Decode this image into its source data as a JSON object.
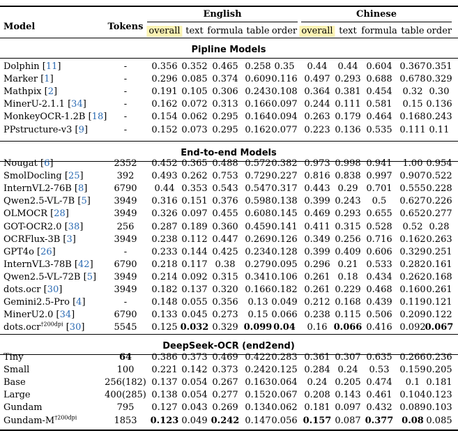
{
  "header": {
    "model": "Model",
    "tokens": "Tokens",
    "english": "English",
    "chinese": "Chinese",
    "cols": [
      "overall",
      "text",
      "formula",
      "table",
      "order"
    ]
  },
  "sections": [
    {
      "title": "Pipline Models",
      "rows": [
        {
          "name": "Dolphin",
          "cite": "11",
          "sup": "",
          "tokens": "-",
          "en": [
            "0.356",
            "0.352",
            "0.465",
            "0.258",
            "0.35"
          ],
          "zh": [
            "0.44",
            "0.44",
            "0.604",
            "0.367",
            "0.351"
          ]
        },
        {
          "name": "Marker",
          "cite": "1",
          "sup": "",
          "tokens": "-",
          "en": [
            "0.296",
            "0.085",
            "0.374",
            "0.609",
            "0.116"
          ],
          "zh": [
            "0.497",
            "0.293",
            "0.688",
            "0.678",
            "0.329"
          ]
        },
        {
          "name": "Mathpix",
          "cite": "2",
          "sup": "",
          "tokens": "-",
          "en": [
            "0.191",
            "0.105",
            "0.306",
            "0.243",
            "0.108"
          ],
          "zh": [
            "0.364",
            "0.381",
            "0.454",
            "0.32",
            "0.30"
          ]
        },
        {
          "name": "MinerU-2.1.1",
          "cite": "34",
          "sup": "",
          "tokens": "-",
          "en": [
            "0.162",
            "0.072",
            "0.313",
            "0.166",
            "0.097"
          ],
          "zh": [
            "0.244",
            "0.111",
            "0.581",
            "0.15",
            "0.136"
          ]
        },
        {
          "name": "MonkeyOCR-1.2B",
          "cite": "18",
          "sup": "",
          "tokens": "-",
          "en": [
            "0.154",
            "0.062",
            "0.295",
            "0.164",
            "0.094"
          ],
          "zh": [
            "0.263",
            "0.179",
            "0.464",
            "0.168",
            "0.243"
          ]
        },
        {
          "name": "PPstructure-v3",
          "cite": "9",
          "sup": "",
          "tokens": "-",
          "en": [
            "0.152",
            "0.073",
            "0.295",
            "0.162",
            "0.077"
          ],
          "zh": [
            "0.223",
            "0.136",
            "0.535",
            "0.111",
            "0.11"
          ]
        }
      ]
    },
    {
      "title": "End-to-end Models",
      "rows": [
        {
          "name": "Nougat",
          "cite": "6",
          "sup": "",
          "tokens": "2352",
          "en": [
            "0.452",
            "0.365",
            "0.488",
            "0.572",
            "0.382"
          ],
          "zh": [
            "0.973",
            "0.998",
            "0.941",
            "1.00",
            "0.954"
          ]
        },
        {
          "name": "SmolDocling",
          "cite": "25",
          "sup": "",
          "tokens": "392",
          "en": [
            "0.493",
            "0.262",
            "0.753",
            "0.729",
            "0.227"
          ],
          "zh": [
            "0.816",
            "0.838",
            "0.997",
            "0.907",
            "0.522"
          ]
        },
        {
          "name": "InternVL2-76B",
          "cite": "8",
          "sup": "",
          "tokens": "6790",
          "en": [
            "0.44",
            "0.353",
            "0.543",
            "0.547",
            "0.317"
          ],
          "zh": [
            "0.443",
            "0.29",
            "0.701",
            "0.555",
            "0.228"
          ]
        },
        {
          "name": "Qwen2.5-VL-7B",
          "cite": "5",
          "sup": "",
          "tokens": "3949",
          "en": [
            "0.316",
            "0.151",
            "0.376",
            "0.598",
            "0.138"
          ],
          "zh": [
            "0.399",
            "0.243",
            "0.5",
            "0.627",
            "0.226"
          ]
        },
        {
          "name": "OLMOCR",
          "cite": "28",
          "sup": "",
          "tokens": "3949",
          "en": [
            "0.326",
            "0.097",
            "0.455",
            "0.608",
            "0.145"
          ],
          "zh": [
            "0.469",
            "0.293",
            "0.655",
            "0.652",
            "0.277"
          ]
        },
        {
          "name": "GOT-OCR2.0",
          "cite": "38",
          "sup": "",
          "tokens": "256",
          "en": [
            "0.287",
            "0.189",
            "0.360",
            "0.459",
            "0.141"
          ],
          "zh": [
            "0.411",
            "0.315",
            "0.528",
            "0.52",
            "0.28"
          ]
        },
        {
          "name": "OCRFlux-3B",
          "cite": "3",
          "sup": "",
          "tokens": "3949",
          "en": [
            "0.238",
            "0.112",
            "0.447",
            "0.269",
            "0.126"
          ],
          "zh": [
            "0.349",
            "0.256",
            "0.716",
            "0.162",
            "0.263"
          ]
        },
        {
          "name": "GPT4o",
          "cite": "26",
          "sup": "",
          "tokens": "-",
          "en": [
            "0.233",
            "0.144",
            "0.425",
            "0.234",
            "0.128"
          ],
          "zh": [
            "0.399",
            "0.409",
            "0.606",
            "0.329",
            "0.251"
          ]
        },
        {
          "name": "InternVL3-78B",
          "cite": "42",
          "sup": "",
          "tokens": "6790",
          "en": [
            "0.218",
            "0.117",
            "0.38",
            "0.279",
            "0.095"
          ],
          "zh": [
            "0.296",
            "0.21",
            "0.533",
            "0.282",
            "0.161"
          ]
        },
        {
          "name": "Qwen2.5-VL-72B",
          "cite": "5",
          "sup": "",
          "tokens": "3949",
          "en": [
            "0.214",
            "0.092",
            "0.315",
            "0.341",
            "0.106"
          ],
          "zh": [
            "0.261",
            "0.18",
            "0.434",
            "0.262",
            "0.168"
          ]
        },
        {
          "name": "dots.ocr",
          "cite": "30",
          "sup": "",
          "tokens": "3949",
          "en": [
            "0.182",
            "0.137",
            "0.320",
            "0.166",
            "0.182"
          ],
          "zh": [
            "0.261",
            "0.229",
            "0.468",
            "0.160",
            "0.261"
          ]
        },
        {
          "name": "Gemini2.5-Pro",
          "cite": "4",
          "sup": "",
          "tokens": "-",
          "en": [
            "0.148",
            "0.055",
            "0.356",
            "0.13",
            "0.049"
          ],
          "zh": [
            "0.212",
            "0.168",
            "0.439",
            "0.119",
            "0.121"
          ]
        },
        {
          "name": "MinerU2.0",
          "cite": "34",
          "sup": "",
          "tokens": "6790",
          "en": [
            "0.133",
            "0.045",
            "0.273",
            "0.15",
            "0.066"
          ],
          "zh": [
            "0.238",
            "0.115",
            "0.506",
            "0.209",
            "0.122"
          ]
        },
        {
          "name": "dots.ocr",
          "cite": "30",
          "sup": "†200dpi",
          "tokens": "5545",
          "en": [
            "0.125",
            "0.032",
            "0.329",
            "0.099",
            "0.04"
          ],
          "zh": [
            "0.16",
            "0.066",
            "0.416",
            "0.092",
            "0.067"
          ],
          "bold_en": [
            1,
            3,
            4
          ],
          "bold_zh": [
            1,
            4
          ]
        }
      ]
    },
    {
      "title": "DeepSeek-OCR (end2end)",
      "rows": [
        {
          "name": "Tiny",
          "cite": "",
          "sup": "",
          "tokens": "64",
          "bold_tokens": true,
          "en": [
            "0.386",
            "0.373",
            "0.469",
            "0.422",
            "0.283"
          ],
          "zh": [
            "0.361",
            "0.307",
            "0.635",
            "0.266",
            "0.236"
          ]
        },
        {
          "name": "Small",
          "cite": "",
          "sup": "",
          "tokens": "100",
          "en": [
            "0.221",
            "0.142",
            "0.373",
            "0.242",
            "0.125"
          ],
          "zh": [
            "0.284",
            "0.24",
            "0.53",
            "0.159",
            "0.205"
          ]
        },
        {
          "name": "Base",
          "cite": "",
          "sup": "",
          "tokens": "256(182)",
          "en": [
            "0.137",
            "0.054",
            "0.267",
            "0.163",
            "0.064"
          ],
          "zh": [
            "0.24",
            "0.205",
            "0.474",
            "0.1",
            "0.181"
          ]
        },
        {
          "name": "Large",
          "cite": "",
          "sup": "",
          "tokens": "400(285)",
          "en": [
            "0.138",
            "0.054",
            "0.277",
            "0.152",
            "0.067"
          ],
          "zh": [
            "0.208",
            "0.143",
            "0.461",
            "0.104",
            "0.123"
          ]
        },
        {
          "name": "Gundam",
          "cite": "",
          "sup": "",
          "tokens": "795",
          "en": [
            "0.127",
            "0.043",
            "0.269",
            "0.134",
            "0.062"
          ],
          "zh": [
            "0.181",
            "0.097",
            "0.432",
            "0.089",
            "0.103"
          ]
        },
        {
          "name": "Gundam-M",
          "cite": "",
          "sup": "†200dpi",
          "tokens": "1853",
          "en": [
            "0.123",
            "0.049",
            "0.242",
            "0.147",
            "0.056"
          ],
          "zh": [
            "0.157",
            "0.087",
            "0.377",
            "0.08",
            "0.085"
          ],
          "bold_en": [
            0,
            2
          ],
          "bold_zh": [
            0,
            2,
            3
          ]
        }
      ]
    }
  ]
}
